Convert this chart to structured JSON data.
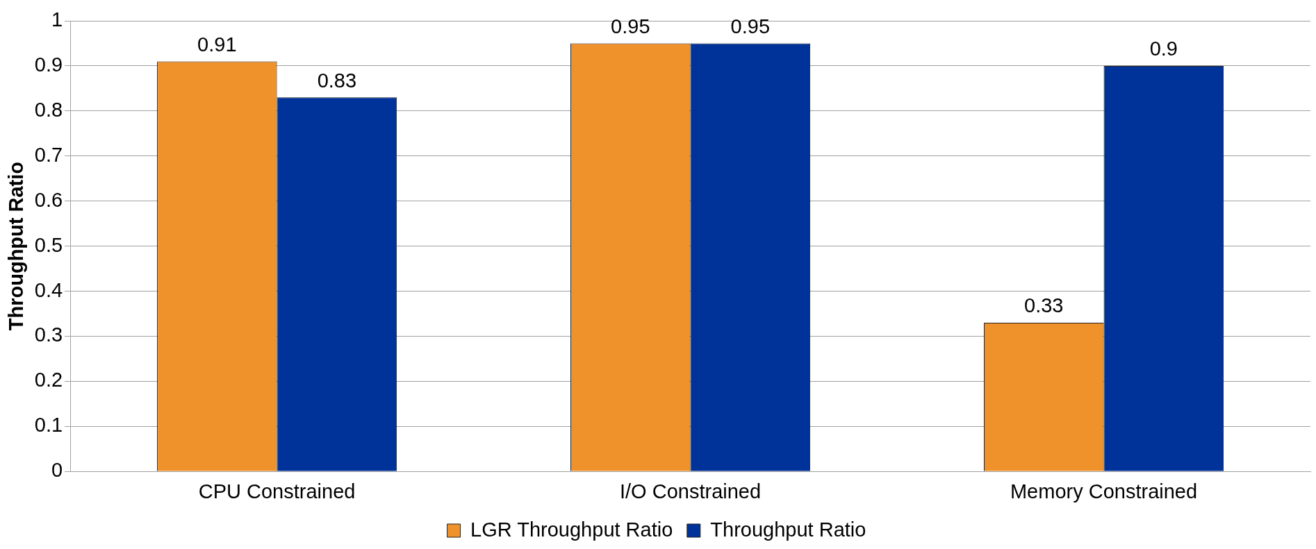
{
  "chart_data": {
    "type": "bar",
    "ylabel": "Throughput Ratio",
    "categories": [
      "CPU Constrained",
      "I/O Constrained",
      "Memory Constrained"
    ],
    "series": [
      {
        "name": "LGR Throughput Ratio",
        "color": "#f0922b",
        "values": [
          0.91,
          0.95,
          0.33
        ]
      },
      {
        "name": "Throughput Ratio",
        "color": "#003399",
        "values": [
          0.83,
          0.95,
          0.9
        ]
      }
    ],
    "ylim": [
      0,
      1
    ],
    "yticks": [
      0,
      0.1,
      0.2,
      0.3,
      0.4,
      0.5,
      0.6,
      0.7,
      0.8,
      0.9,
      1
    ],
    "grid": "y",
    "legend": "bottom",
    "data_labels": true
  }
}
